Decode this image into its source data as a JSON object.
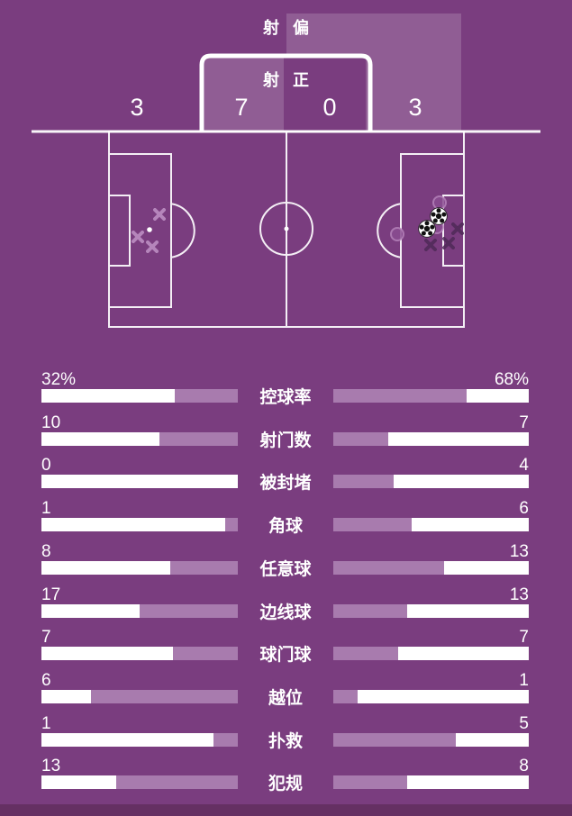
{
  "colors": {
    "background": "#7a3d7f",
    "bar_track": "#ffffff",
    "bar_fill": "#a87bae",
    "pitch_line": "#ffffff",
    "overlay_zone": "rgba(255,255,255,0.17)",
    "footer_band": "#653063",
    "marker_light_x": "#c498ca",
    "marker_dark_x": "#4f2a58",
    "marker_circle_fill": "#8a4c90",
    "marker_circle_stroke": "#b684bb"
  },
  "shot_summary": {
    "off_target": {
      "label": "射偏",
      "chars": [
        "射",
        "偏"
      ],
      "home": "3",
      "away": "3"
    },
    "on_target": {
      "label": "射正",
      "chars": [
        "射",
        "正"
      ],
      "home": "7",
      "away": "0"
    }
  },
  "pitch": {
    "markers": {
      "home_off_target_x": [
        [
          177,
          238
        ],
        [
          153,
          263
        ],
        [
          169,
          274
        ]
      ],
      "away_off_target_x": [
        [
          508,
          254
        ],
        [
          478,
          272
        ],
        [
          498,
          270
        ]
      ],
      "away_shot_circles": [
        [
          488,
          225
        ],
        [
          441,
          260
        ],
        [
          485,
          252
        ]
      ],
      "goal_balls": [
        [
          487,
          240
        ],
        [
          474,
          254
        ]
      ],
      "penalty_spots": [
        [
          166,
          255
        ],
        [
          470,
          255
        ]
      ]
    }
  },
  "stats": {
    "rows": [
      {
        "label": "控球率",
        "home": "32%",
        "away": "68%",
        "home_fill": 32,
        "away_fill": 68
      },
      {
        "label": "射门数",
        "home": "10",
        "away": "7",
        "home_fill": 40,
        "away_fill": 28
      },
      {
        "label": "被封堵",
        "home": "0",
        "away": "4",
        "home_fill": 0,
        "away_fill": 31
      },
      {
        "label": "角球",
        "home": "1",
        "away": "6",
        "home_fill": 6.5,
        "away_fill": 40
      },
      {
        "label": "任意球",
        "home": "8",
        "away": "13",
        "home_fill": 34.5,
        "away_fill": 56.5
      },
      {
        "label": "边线球",
        "home": "17",
        "away": "13",
        "home_fill": 50,
        "away_fill": 38
      },
      {
        "label": "球门球",
        "home": "7",
        "away": "7",
        "home_fill": 33,
        "away_fill": 33
      },
      {
        "label": "越位",
        "home": "6",
        "away": "1",
        "home_fill": 75,
        "away_fill": 12.5
      },
      {
        "label": "扑救",
        "home": "1",
        "away": "5",
        "home_fill": 12.5,
        "away_fill": 62.5
      },
      {
        "label": "犯规",
        "home": "13",
        "away": "8",
        "home_fill": 62,
        "away_fill": 38
      }
    ]
  }
}
